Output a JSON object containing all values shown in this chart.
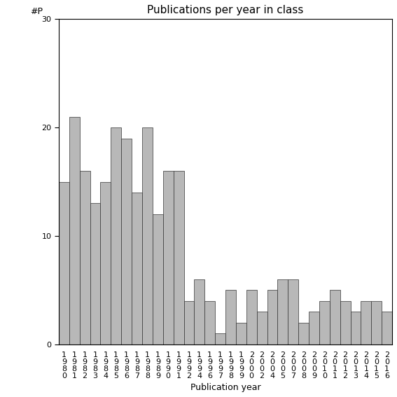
{
  "title": "Publications per year in class",
  "xlabel": "Publication year",
  "ylabel": "#P",
  "ylim": [
    0,
    30
  ],
  "yticks": [
    0,
    10,
    20,
    30
  ],
  "bar_color": "#b8b8b8",
  "bar_edgecolor": "#333333",
  "categories": [
    "1\n9\n8\n0",
    "1\n9\n8\n1",
    "1\n9\n8\n2",
    "1\n9\n8\n3",
    "1\n9\n8\n4",
    "1\n9\n8\n5",
    "1\n9\n8\n6",
    "1\n9\n8\n7",
    "1\n9\n8\n8",
    "1\n9\n8\n9",
    "1\n9\n9\n0",
    "1\n9\n9\n1",
    "1\n9\n9\n2",
    "1\n9\n9\n4",
    "1\n9\n9\n6",
    "1\n9\n9\n7",
    "1\n9\n9\n8",
    "1\n9\n9\n9",
    "2\n0\n0\n0",
    "2\n0\n0\n2",
    "2\n0\n0\n4",
    "2\n0\n0\n5",
    "2\n0\n0\n7",
    "2\n0\n0\n8",
    "2\n0\n0\n9",
    "2\n0\n1\n0",
    "2\n0\n1\n1",
    "2\n0\n1\n2",
    "2\n0\n1\n3",
    "2\n0\n1\n4",
    "2\n0\n1\n5",
    "2\n0\n1\n6"
  ],
  "values": [
    15,
    21,
    16,
    13,
    15,
    20,
    19,
    14,
    20,
    12,
    16,
    16,
    4,
    6,
    4,
    1,
    5,
    2,
    5,
    3,
    5,
    6,
    6,
    2,
    3,
    4,
    5,
    4,
    3,
    4,
    4,
    3
  ],
  "title_fontsize": 11,
  "axis_fontsize": 9,
  "tick_fontsize": 8,
  "xlabel_fontsize": 9
}
